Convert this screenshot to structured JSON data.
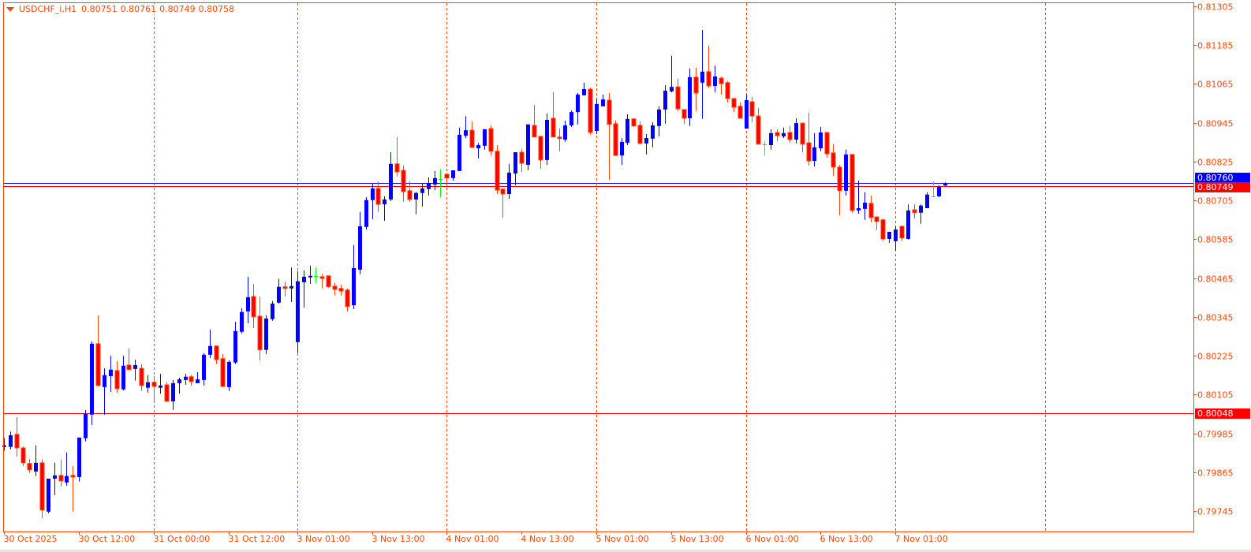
{
  "header": {
    "symbol": "USDCHF_i,H1",
    "open": "0.80751",
    "high": "0.80761",
    "low": "0.80749",
    "close": "0.80758",
    "menu_icon": "triangle-down-icon"
  },
  "colors": {
    "axis": "#ff4500",
    "bull": "#0000ff",
    "bear_fill": "#ff0000",
    "bear_outline": "#ff4500",
    "doji": "#00ff00",
    "grid": "#ff4500",
    "ask_line": "#0000ff",
    "bid_line": "#ff0000",
    "level_line": "#ff0000"
  },
  "chart_data": {
    "type": "candlestick",
    "timeframe": "H1",
    "ylim": [
      0.79735,
      0.81315
    ],
    "grid": "vertical dashed",
    "y_ticks": [
      "0.81305",
      "0.81185",
      "0.81065",
      "0.80945",
      "0.80825",
      "0.80705",
      "0.80585",
      "0.80465",
      "0.80345",
      "0.80225",
      "0.80105",
      "0.79985",
      "0.79865",
      "0.79745"
    ],
    "x_ticks": [
      {
        "bar": 0,
        "label": "30 Oct 2025"
      },
      {
        "bar": 12,
        "label": "30 Oct 12:00"
      },
      {
        "bar": 24,
        "label": "31 Oct 00:00"
      },
      {
        "bar": 36,
        "label": "31 Oct 12:00"
      },
      {
        "bar": 47,
        "label": "3 Nov 01:00"
      },
      {
        "bar": 59,
        "label": "3 Nov 13:00"
      },
      {
        "bar": 71,
        "label": "4 Nov 01:00"
      },
      {
        "bar": 83,
        "label": "4 Nov 13:00"
      },
      {
        "bar": 95,
        "label": "5 Nov 01:00"
      },
      {
        "bar": 107,
        "label": "5 Nov 13:00"
      },
      {
        "bar": 119,
        "label": "6 Nov 01:00"
      },
      {
        "bar": 131,
        "label": "6 Nov 13:00"
      },
      {
        "bar": 143,
        "label": "7 Nov 01:00"
      }
    ],
    "grid_bars": [
      24,
      47,
      71,
      95,
      119,
      143,
      167
    ],
    "price_lines": [
      {
        "name": "ask",
        "price": 0.8076,
        "label": "0.80760",
        "color": "#0000ff"
      },
      {
        "name": "bid",
        "price": 0.80749,
        "label": "0.80749",
        "color": "#ff0000"
      },
      {
        "name": "level",
        "price": 0.80048,
        "label": "0.80048",
        "color": "#ff0000"
      }
    ],
    "candle_fields": [
      "open",
      "high",
      "low",
      "close"
    ],
    "candles": [
      [
        0.79943,
        0.7997,
        0.79931,
        0.79948
      ],
      [
        0.79943,
        0.79991,
        0.79935,
        0.79979
      ],
      [
        0.79982,
        0.80035,
        0.79913,
        0.7994
      ],
      [
        0.7994,
        0.79945,
        0.79884,
        0.79894
      ],
      [
        0.79892,
        0.79906,
        0.79862,
        0.79872
      ],
      [
        0.79867,
        0.79948,
        0.79853,
        0.79894
      ],
      [
        0.79894,
        0.79904,
        0.79723,
        0.79748
      ],
      [
        0.79743,
        0.79845,
        0.79738,
        0.79845
      ],
      [
        0.79845,
        0.79894,
        0.79794,
        0.79855
      ],
      [
        0.79855,
        0.79904,
        0.79821,
        0.79838
      ],
      [
        0.79833,
        0.79926,
        0.79823,
        0.79853
      ],
      [
        0.79855,
        0.79884,
        0.79743,
        0.7985
      ],
      [
        0.7985,
        0.79972,
        0.79836,
        0.79972
      ],
      [
        0.7997,
        0.80057,
        0.7996,
        0.80045
      ],
      [
        0.80043,
        0.80269,
        0.80011,
        0.80262
      ],
      [
        0.80262,
        0.8035,
        0.8013,
        0.80133
      ],
      [
        0.80128,
        0.80186,
        0.80043,
        0.80165
      ],
      [
        0.80162,
        0.80225,
        0.80113,
        0.80182
      ],
      [
        0.80179,
        0.80208,
        0.80111,
        0.80123
      ],
      [
        0.80121,
        0.80225,
        0.80118,
        0.80194
      ],
      [
        0.80196,
        0.80247,
        0.80182,
        0.80182
      ],
      [
        0.80184,
        0.80213,
        0.80148,
        0.80196
      ],
      [
        0.80186,
        0.80199,
        0.80116,
        0.80133
      ],
      [
        0.80126,
        0.80165,
        0.80111,
        0.80143
      ],
      [
        0.80143,
        0.80162,
        0.80082,
        0.8013
      ],
      [
        0.80126,
        0.80169,
        0.80108,
        0.80133
      ],
      [
        0.80135,
        0.80143,
        0.80084,
        0.80084
      ],
      [
        0.80084,
        0.8015,
        0.80057,
        0.8014
      ],
      [
        0.8014,
        0.80157,
        0.80108,
        0.80152
      ],
      [
        0.8015,
        0.80169,
        0.80135,
        0.8016
      ],
      [
        0.8016,
        0.80165,
        0.80133,
        0.80145
      ],
      [
        0.8014,
        0.80174,
        0.8014,
        0.80152
      ],
      [
        0.8015,
        0.80233,
        0.80133,
        0.80228
      ],
      [
        0.80228,
        0.80306,
        0.80218,
        0.80255
      ],
      [
        0.80255,
        0.80257,
        0.80199,
        0.80213
      ],
      [
        0.80216,
        0.8023,
        0.80128,
        0.8013
      ],
      [
        0.80128,
        0.80211,
        0.80116,
        0.80206
      ],
      [
        0.80204,
        0.8033,
        0.80199,
        0.80301
      ],
      [
        0.80299,
        0.80372,
        0.80294,
        0.8036
      ],
      [
        0.80362,
        0.80469,
        0.80325,
        0.80406
      ],
      [
        0.80408,
        0.80447,
        0.80311,
        0.80345
      ],
      [
        0.80347,
        0.80408,
        0.80211,
        0.80243
      ],
      [
        0.80243,
        0.8035,
        0.8023,
        0.8034
      ],
      [
        0.80338,
        0.80394,
        0.80333,
        0.80386
      ],
      [
        0.80389,
        0.80462,
        0.80386,
        0.80438
      ],
      [
        0.80438,
        0.80455,
        0.80408,
        0.80433
      ],
      [
        0.80433,
        0.80498,
        0.80391,
        0.8044
      ],
      [
        0.80267,
        0.80486,
        0.80233,
        0.80455
      ],
      [
        0.80452,
        0.80489,
        0.80374,
        0.80469
      ],
      [
        0.80467,
        0.80503,
        0.80447,
        0.80472
      ],
      [
        0.80472,
        0.80498,
        0.8045,
        0.80472
      ],
      [
        0.80469,
        0.80477,
        0.80433,
        0.80464
      ],
      [
        0.80472,
        0.80472,
        0.80435,
        0.80438
      ],
      [
        0.8044,
        0.8045,
        0.80411,
        0.8043
      ],
      [
        0.80433,
        0.80445,
        0.80411,
        0.80425
      ],
      [
        0.80428,
        0.80433,
        0.80362,
        0.80377
      ],
      [
        0.80381,
        0.80567,
        0.80369,
        0.80496
      ],
      [
        0.80491,
        0.80669,
        0.80477,
        0.80625
      ],
      [
        0.80623,
        0.80715,
        0.80615,
        0.80706
      ],
      [
        0.80706,
        0.80757,
        0.80647,
        0.80742
      ],
      [
        0.80742,
        0.80764,
        0.80669,
        0.80693
      ],
      [
        0.80693,
        0.80718,
        0.80642,
        0.80708
      ],
      [
        0.80708,
        0.80854,
        0.80703,
        0.80818
      ],
      [
        0.80818,
        0.80901,
        0.80779,
        0.80793
      ],
      [
        0.80798,
        0.80813,
        0.80701,
        0.80732
      ],
      [
        0.80735,
        0.80764,
        0.80701,
        0.80708
      ],
      [
        0.80708,
        0.80732,
        0.80662,
        0.80728
      ],
      [
        0.80728,
        0.80759,
        0.80686,
        0.80742
      ],
      [
        0.8074,
        0.80776,
        0.8072,
        0.80757
      ],
      [
        0.80754,
        0.80796,
        0.80737,
        0.80774
      ],
      [
        0.80771,
        0.80801,
        0.80715,
        0.80771
      ],
      [
        0.80786,
        0.80786,
        0.80749,
        0.80774
      ],
      [
        0.80774,
        0.80798,
        0.80766,
        0.80798
      ],
      [
        0.80796,
        0.8093,
        0.80796,
        0.80908
      ],
      [
        0.80905,
        0.80966,
        0.80898,
        0.80922
      ],
      [
        0.80922,
        0.80949,
        0.80869,
        0.80869
      ],
      [
        0.80866,
        0.80883,
        0.80835,
        0.80876
      ],
      [
        0.80874,
        0.80925,
        0.80862,
        0.80925
      ],
      [
        0.80927,
        0.80937,
        0.80844,
        0.80857
      ],
      [
        0.80857,
        0.80876,
        0.80725,
        0.80737
      ],
      [
        0.8074,
        0.8074,
        0.80652,
        0.80725
      ],
      [
        0.80725,
        0.80818,
        0.8071,
        0.80791
      ],
      [
        0.80788,
        0.80854,
        0.80752,
        0.80854
      ],
      [
        0.80854,
        0.80864,
        0.80793,
        0.8082
      ],
      [
        0.80815,
        0.8094,
        0.80798,
        0.8094
      ],
      [
        0.80937,
        0.81,
        0.80901,
        0.80901
      ],
      [
        0.80903,
        0.80903,
        0.80803,
        0.8083
      ],
      [
        0.8083,
        0.80974,
        0.80815,
        0.80954
      ],
      [
        0.80959,
        0.81039,
        0.80901,
        0.80901
      ],
      [
        0.80901,
        0.80927,
        0.80857,
        0.80896
      ],
      [
        0.80893,
        0.80952,
        0.80886,
        0.80937
      ],
      [
        0.80937,
        0.80983,
        0.80932,
        0.80978
      ],
      [
        0.80978,
        0.81037,
        0.8094,
        0.81032
      ],
      [
        0.8103,
        0.81069,
        0.8103,
        0.81049
      ],
      [
        0.81049,
        0.81054,
        0.80908,
        0.80915
      ],
      [
        0.8092,
        0.8102,
        0.8091,
        0.81003
      ],
      [
        0.80996,
        0.81032,
        0.80996,
        0.81017
      ],
      [
        0.81015,
        0.81037,
        0.80769,
        0.8094
      ],
      [
        0.80942,
        0.80952,
        0.80844,
        0.80844
      ],
      [
        0.80844,
        0.80898,
        0.80815,
        0.80886
      ],
      [
        0.80883,
        0.80971,
        0.80876,
        0.80957
      ],
      [
        0.80957,
        0.80957,
        0.80932,
        0.80935
      ],
      [
        0.80937,
        0.80949,
        0.80881,
        0.80881
      ],
      [
        0.80881,
        0.8091,
        0.80847,
        0.80898
      ],
      [
        0.80896,
        0.80947,
        0.80869,
        0.80937
      ],
      [
        0.80935,
        0.80996,
        0.80903,
        0.80986
      ],
      [
        0.80986,
        0.81061,
        0.80942,
        0.81044
      ],
      [
        0.81042,
        0.81152,
        0.81039,
        0.81056
      ],
      [
        0.81056,
        0.81081,
        0.80981,
        0.80988
      ],
      [
        0.80986,
        0.80986,
        0.80942,
        0.80959
      ],
      [
        0.80959,
        0.81113,
        0.80935,
        0.81086
      ],
      [
        0.81086,
        0.81115,
        0.80981,
        0.81037
      ],
      [
        0.81069,
        0.81232,
        0.80957,
        0.81103
      ],
      [
        0.81103,
        0.81183,
        0.81052,
        0.81059
      ],
      [
        0.81059,
        0.81122,
        0.81039,
        0.81088
      ],
      [
        0.81083,
        0.81088,
        0.81032,
        0.81066
      ],
      [
        0.81069,
        0.81074,
        0.81008,
        0.8102
      ],
      [
        0.8102,
        0.8102,
        0.80978,
        0.80993
      ],
      [
        0.80996,
        0.81008,
        0.80959,
        0.80959
      ],
      [
        0.80927,
        0.81032,
        0.80927,
        0.81015
      ],
      [
        0.8101,
        0.81025,
        0.80947,
        0.80966
      ],
      [
        0.80966,
        0.80991,
        0.80879,
        0.80879
      ],
      [
        0.80879,
        0.80888,
        0.80844,
        0.80879
      ],
      [
        0.80876,
        0.80925,
        0.80862,
        0.80913
      ],
      [
        0.80915,
        0.80925,
        0.80888,
        0.80905
      ],
      [
        0.80903,
        0.8093,
        0.80898,
        0.80913
      ],
      [
        0.80915,
        0.80935,
        0.80883,
        0.80893
      ],
      [
        0.80893,
        0.80959,
        0.80881,
        0.80944
      ],
      [
        0.80944,
        0.80944,
        0.80854,
        0.80879
      ],
      [
        0.80883,
        0.80976,
        0.80813,
        0.80827
      ],
      [
        0.80827,
        0.80913,
        0.8081,
        0.80869
      ],
      [
        0.80866,
        0.80932,
        0.80857,
        0.80915
      ],
      [
        0.80915,
        0.80915,
        0.80837,
        0.80849
      ],
      [
        0.80852,
        0.80879,
        0.80781,
        0.80808
      ],
      [
        0.80808,
        0.80815,
        0.80659,
        0.80735
      ],
      [
        0.80735,
        0.80862,
        0.8072,
        0.80847
      ],
      [
        0.80847,
        0.80847,
        0.80667,
        0.80674
      ],
      [
        0.80674,
        0.80766,
        0.80664,
        0.80681
      ],
      [
        0.80679,
        0.8073,
        0.80645,
        0.80698
      ],
      [
        0.80696,
        0.8072,
        0.80637,
        0.80652
      ],
      [
        0.80654,
        0.80654,
        0.80613,
        0.8064
      ],
      [
        0.80645,
        0.80649,
        0.80579,
        0.80586
      ],
      [
        0.80586,
        0.80608,
        0.80574,
        0.80608
      ],
      [
        0.80579,
        0.80625,
        0.8055,
        0.80615
      ],
      [
        0.80625,
        0.80625,
        0.80579,
        0.80589
      ],
      [
        0.80586,
        0.80693,
        0.80584,
        0.80674
      ],
      [
        0.80676,
        0.80693,
        0.80649,
        0.80667
      ],
      [
        0.80667,
        0.80693,
        0.80633,
        0.80689
      ],
      [
        0.80681,
        0.8073,
        0.80681,
        0.80723
      ],
      [
        0.80718,
        0.80764,
        0.80718,
        0.80718
      ],
      [
        0.80718,
        0.80752,
        0.80715,
        0.80747
      ],
      [
        0.80751,
        0.80761,
        0.80749,
        0.80758
      ]
    ]
  }
}
